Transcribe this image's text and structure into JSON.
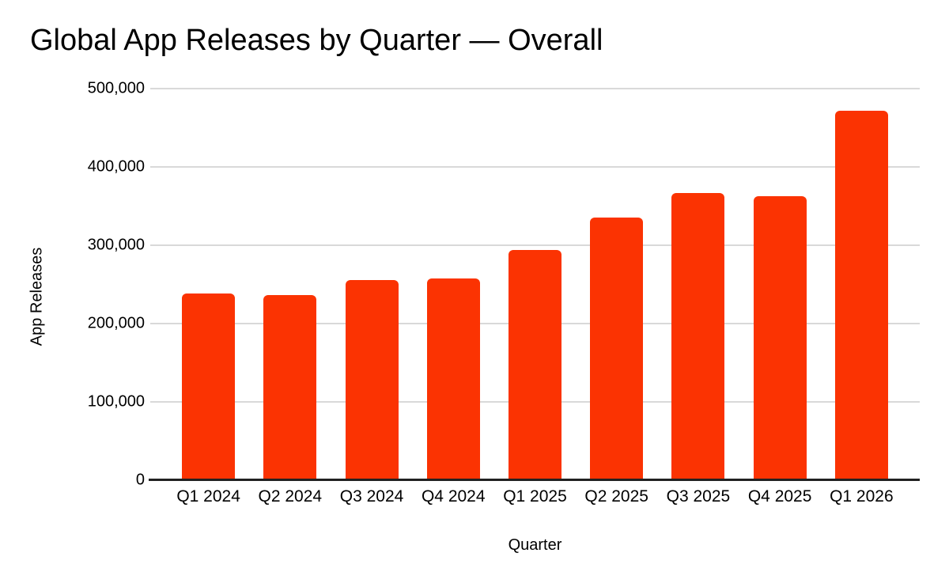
{
  "page": {
    "background_color": "#ffffff",
    "text_color": "#000000"
  },
  "chart": {
    "title": "Global App Releases by Quarter — Overall",
    "x_axis_title": "Quarter",
    "y_axis_title": "App Releases",
    "bar_color": "#fb3302",
    "gridline_color": "#d9d9d9",
    "axis_line_color": "#212121",
    "y_tick_labels": [
      "0",
      "100,000",
      "200,000",
      "300,000",
      "400,000",
      "500,000"
    ]
  },
  "chart_data": {
    "type": "bar",
    "title": "Global App Releases by Quarter — Overall",
    "xlabel": "Quarter",
    "ylabel": "App Releases",
    "categories": [
      "Q1 2024",
      "Q2 2024",
      "Q3 2024",
      "Q4 2024",
      "Q1 2025",
      "Q2 2025",
      "Q3 2025",
      "Q4 2025",
      "Q1 2026"
    ],
    "values": [
      238000,
      236000,
      256000,
      258000,
      294000,
      335000,
      367000,
      363000,
      472000
    ],
    "ylim": [
      0,
      500000
    ],
    "y_tick_interval": 100000,
    "grid": true,
    "legend": false,
    "series_color": "#fb3302"
  }
}
